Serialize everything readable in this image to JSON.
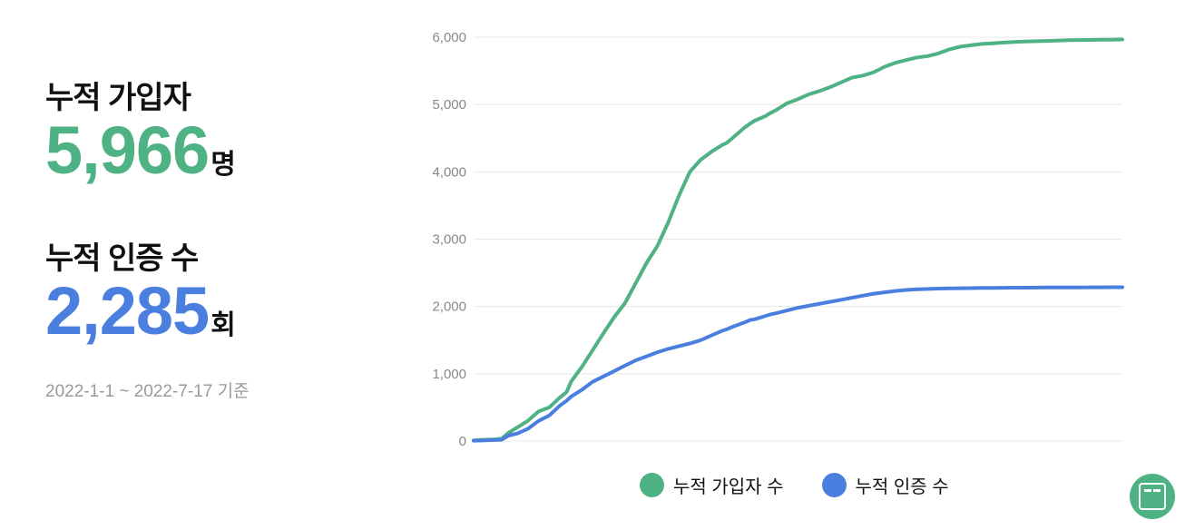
{
  "stats": {
    "signups": {
      "label": "누적 가입자",
      "value": "5,966",
      "unit": "명"
    },
    "certifications": {
      "label": "누적 인증 수",
      "value": "2,285",
      "unit": "회"
    },
    "period": "2022-1-1 ~ 2022-7-17 기준"
  },
  "legend": {
    "signups_label": "누적 가입자 수",
    "certifications_label": "누적 인증 수"
  },
  "badge": {
    "icon": "app-logo-icon",
    "color": "#4fb285"
  },
  "colors": {
    "signups": "#4fb285",
    "certifications": "#4a7fe0",
    "grid": "#e8e8e8"
  },
  "chart_data": {
    "type": "line",
    "title": "",
    "xlabel": "",
    "ylabel": "",
    "ylim": [
      0,
      6000
    ],
    "yticks": [
      "0",
      "1,000",
      "2,000",
      "3,000",
      "4,000",
      "5,000",
      "6,000"
    ],
    "ytick_values": [
      0,
      1000,
      2000,
      3000,
      4000,
      5000,
      6000
    ],
    "x_ticks_shown": false,
    "grid": "horizontal",
    "legend_position": "bottom",
    "x": [
      0,
      5,
      10,
      13,
      16,
      20,
      25,
      30,
      35,
      40,
      43,
      45,
      50,
      55,
      60,
      65,
      70,
      75,
      80,
      85,
      90,
      95,
      100,
      105,
      110,
      115,
      117,
      120,
      125,
      128,
      130,
      135,
      137,
      140,
      145,
      150,
      155,
      160,
      165,
      170,
      175,
      180,
      185,
      190,
      195,
      200,
      205,
      210,
      215,
      220,
      225,
      230,
      235,
      240,
      245,
      250,
      255,
      260,
      265,
      270,
      275,
      280,
      285,
      290,
      295,
      297,
      300
    ],
    "series": [
      {
        "name": "누적 가입자 수",
        "color": "#4fb285",
        "values": [
          10,
          20,
          25,
          35,
          120,
          200,
          300,
          440,
          500,
          650,
          730,
          880,
          1100,
          1350,
          1600,
          1840,
          2050,
          2350,
          2650,
          2900,
          3250,
          3650,
          4000,
          4180,
          4300,
          4400,
          4430,
          4510,
          4650,
          4720,
          4760,
          4830,
          4870,
          4920,
          5020,
          5080,
          5150,
          5200,
          5260,
          5330,
          5400,
          5430,
          5480,
          5560,
          5620,
          5660,
          5700,
          5720,
          5760,
          5820,
          5860,
          5880,
          5900,
          5910,
          5920,
          5930,
          5935,
          5940,
          5945,
          5950,
          5955,
          5958,
          5960,
          5962,
          5964,
          5965,
          5966
        ]
      },
      {
        "name": "누적 인증 수",
        "color": "#4a7fe0",
        "values": [
          5,
          10,
          15,
          20,
          80,
          110,
          180,
          300,
          380,
          530,
          600,
          660,
          760,
          880,
          960,
          1040,
          1120,
          1200,
          1260,
          1320,
          1370,
          1410,
          1450,
          1500,
          1570,
          1640,
          1660,
          1700,
          1760,
          1800,
          1810,
          1860,
          1880,
          1900,
          1940,
          1980,
          2010,
          2040,
          2070,
          2100,
          2130,
          2160,
          2190,
          2210,
          2230,
          2245,
          2255,
          2260,
          2265,
          2268,
          2270,
          2272,
          2274,
          2276,
          2277,
          2278,
          2279,
          2280,
          2281,
          2282,
          2283,
          2283,
          2284,
          2284,
          2285,
          2285,
          2285
        ]
      }
    ]
  }
}
